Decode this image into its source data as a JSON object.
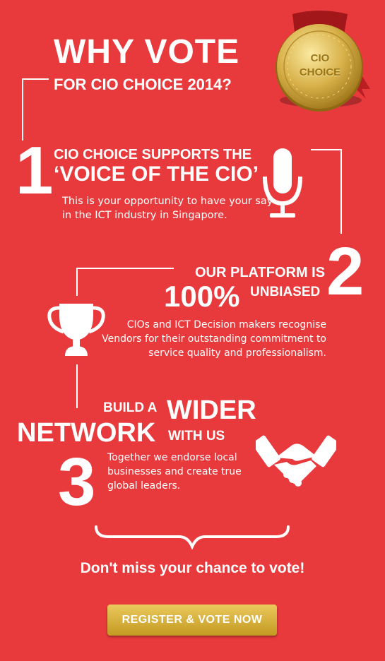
{
  "colors": {
    "background": "#e83a3c",
    "text": "#ffffff",
    "gold": "#d4ac3a",
    "button": "#c9a02a"
  },
  "title": {
    "main": "WHY VOTE",
    "sub": "FOR CIO CHOICE 2014?"
  },
  "medal": {
    "line1": "CIO",
    "line2": "CHOICE",
    "icon": "medal-icon"
  },
  "section1": {
    "number": "1",
    "heading_line1": "CIO CHOICE SUPPORTS THE",
    "heading_line2": "‘VOICE OF THE CIO’",
    "body": "This is your opportunity to have your say in the ICT industry in Singapore.",
    "icon": "microphone-icon"
  },
  "section2": {
    "number": "2",
    "heading_line1": "OUR PLATFORM IS",
    "heading_big": "100%",
    "heading_small": "UNBIASED",
    "body": "CIOs and ICT Decision makers recognise Vendors for their outstanding commitment to service quality and professionalism.",
    "icon": "trophy-icon"
  },
  "section3": {
    "number": "3",
    "heading_build": "BUILD A",
    "heading_wider": "WIDER",
    "heading_network": "NETWORK",
    "heading_withus": "WITH US",
    "body": "Together we endorse local businesses and create true global leaders.",
    "icon": "handshake-icon"
  },
  "cta": {
    "text": "Don't miss your chance to vote!",
    "button_label": "REGISTER & VOTE NOW"
  }
}
